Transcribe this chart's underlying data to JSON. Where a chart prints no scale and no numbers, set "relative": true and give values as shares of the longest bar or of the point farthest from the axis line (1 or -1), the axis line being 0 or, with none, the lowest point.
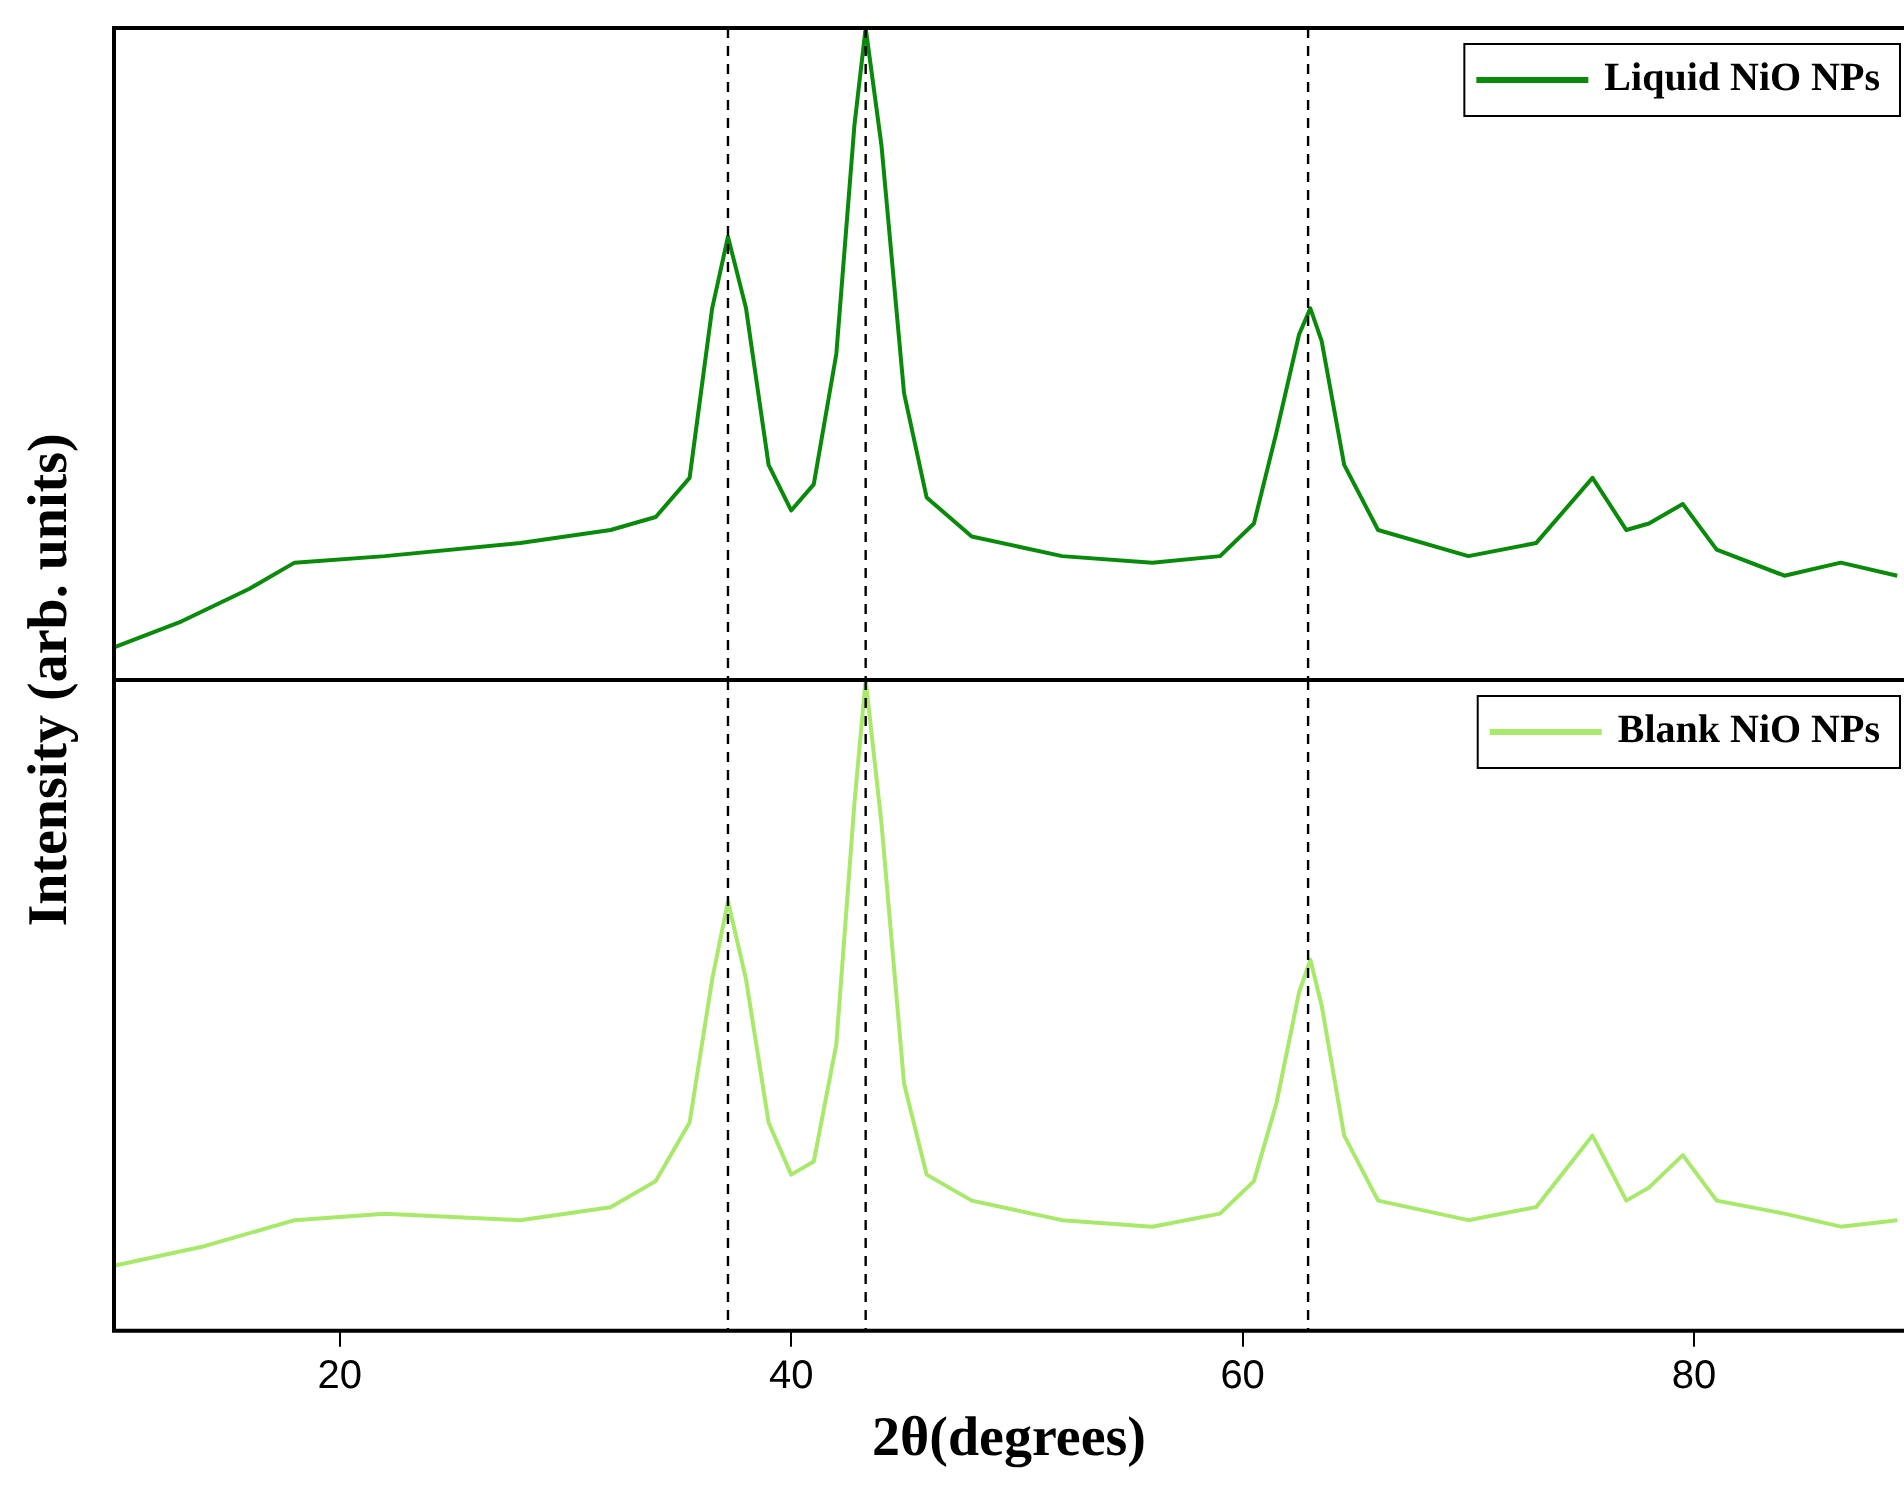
{
  "chart_data": [
    {
      "type": "line",
      "ylabel": "Intensity (arb. units)",
      "relative": true,
      "xlim": [
        10,
        89.3
      ],
      "tick_labels": false,
      "legend": "top right",
      "grid": false,
      "marker": "none",
      "x": [
        10,
        13,
        16,
        18,
        22,
        28,
        32,
        34,
        35.5,
        36.5,
        37.2,
        38,
        39,
        40,
        41,
        42,
        42.8,
        43.3,
        44,
        45,
        46,
        48,
        52,
        56,
        59,
        60.5,
        61.5,
        62.5,
        63,
        63.5,
        64.5,
        66,
        70,
        73,
        75.5,
        77,
        78,
        79.5,
        81,
        84,
        86.5,
        89
      ],
      "series": [
        {
          "name": "Liquid NiO NPs",
          "color": "#0a8a0a",
          "values": [
            0.05,
            0.09,
            0.14,
            0.18,
            0.19,
            0.21,
            0.23,
            0.25,
            0.31,
            0.57,
            0.68,
            0.57,
            0.33,
            0.26,
            0.3,
            0.5,
            0.85,
            1.0,
            0.82,
            0.44,
            0.28,
            0.22,
            0.19,
            0.18,
            0.19,
            0.24,
            0.38,
            0.53,
            0.57,
            0.52,
            0.33,
            0.23,
            0.19,
            0.21,
            0.31,
            0.23,
            0.24,
            0.27,
            0.2,
            0.16,
            0.18,
            0.16
          ]
        }
      ],
      "ref_lines": [
        {
          "axis": "x",
          "value": 37.2,
          "line_style": "dashed"
        },
        {
          "axis": "x",
          "value": 43.3,
          "line_style": "dashed"
        },
        {
          "axis": "x",
          "value": 62.9,
          "line_style": "dashed"
        }
      ]
    },
    {
      "type": "line",
      "xlabel": "2θ(degrees)",
      "relative": true,
      "xlim": [
        10,
        89.3
      ],
      "xticks": [
        20,
        40,
        60,
        80
      ],
      "tick_labels": "x",
      "legend": "top right",
      "grid": false,
      "marker": "none",
      "x": [
        10,
        14,
        18,
        22,
        28,
        32,
        34,
        35.5,
        36.5,
        37.2,
        38,
        39,
        40,
        41,
        42,
        42.8,
        43.3,
        44,
        45,
        46,
        48,
        52,
        56,
        59,
        60.5,
        61.5,
        62.5,
        63,
        63.5,
        64.5,
        66,
        70,
        73,
        75.5,
        77,
        78,
        79.5,
        81,
        84,
        86.5,
        89
      ],
      "series": [
        {
          "name": "Blank NiO NPs",
          "color": "#a8e86a",
          "values": [
            0.1,
            0.13,
            0.17,
            0.18,
            0.17,
            0.19,
            0.23,
            0.32,
            0.54,
            0.66,
            0.54,
            0.32,
            0.24,
            0.26,
            0.44,
            0.81,
            1.0,
            0.78,
            0.38,
            0.24,
            0.2,
            0.17,
            0.16,
            0.18,
            0.23,
            0.35,
            0.52,
            0.57,
            0.5,
            0.3,
            0.2,
            0.17,
            0.19,
            0.3,
            0.2,
            0.22,
            0.27,
            0.2,
            0.18,
            0.16,
            0.17
          ]
        }
      ],
      "ref_lines": [
        {
          "axis": "x",
          "value": 37.2,
          "line_style": "dashed"
        },
        {
          "axis": "x",
          "value": 43.3,
          "line_style": "dashed"
        },
        {
          "axis": "x",
          "value": 62.9,
          "line_style": "dashed"
        }
      ]
    }
  ]
}
